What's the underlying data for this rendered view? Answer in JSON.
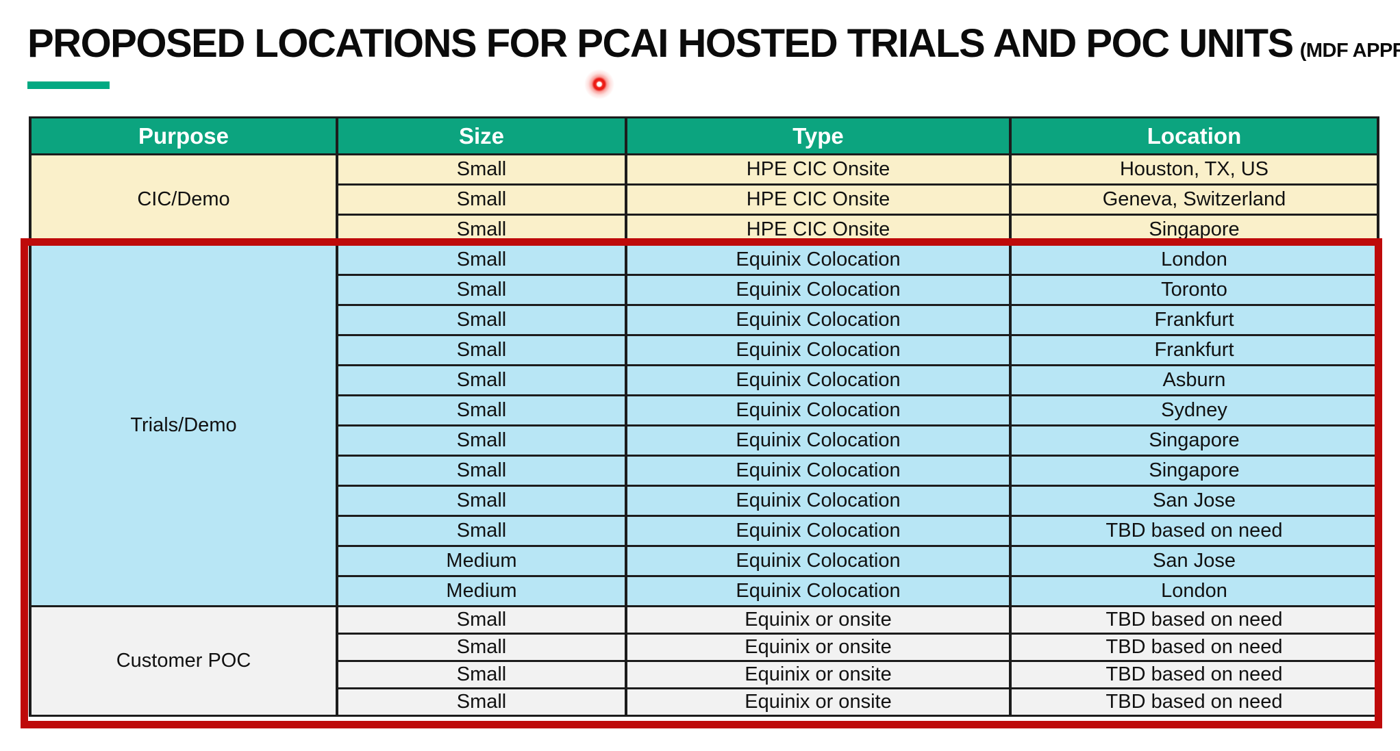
{
  "title": {
    "main": "PROPOSED LOCATIONS FOR PCAI HOSTED TRIALS AND POC UNITS",
    "suffix": "(MDF APPROVED)"
  },
  "colors": {
    "header_green": "#0ca47f",
    "accent_green": "#01a982",
    "cream": "#faf0ca",
    "light_blue": "#b8e6f5",
    "light_gray": "#f2f2f2",
    "highlight_red": "#be0a0a",
    "laser_red": "#e81712"
  },
  "table": {
    "columns": [
      "Purpose",
      "Size",
      "Type",
      "Location"
    ],
    "sections": [
      {
        "purpose": "CIC/Demo",
        "bg": "cream",
        "highlighted": false,
        "rows": [
          {
            "size": "Small",
            "type": "HPE CIC Onsite",
            "location": "Houston, TX, US"
          },
          {
            "size": "Small",
            "type": "HPE CIC Onsite",
            "location": "Geneva, Switzerland"
          },
          {
            "size": "Small",
            "type": "HPE CIC Onsite",
            "location": "Singapore"
          }
        ]
      },
      {
        "purpose": "Trials/Demo",
        "bg": "light_blue",
        "highlighted": true,
        "rows": [
          {
            "size": "Small",
            "type": "Equinix Colocation",
            "location": "London"
          },
          {
            "size": "Small",
            "type": "Equinix Colocation",
            "location": "Toronto"
          },
          {
            "size": "Small",
            "type": "Equinix Colocation",
            "location": "Frankfurt"
          },
          {
            "size": "Small",
            "type": "Equinix Colocation",
            "location": "Frankfurt"
          },
          {
            "size": "Small",
            "type": "Equinix Colocation",
            "location": "Asburn"
          },
          {
            "size": "Small",
            "type": "Equinix Colocation",
            "location": "Sydney"
          },
          {
            "size": "Small",
            "type": "Equinix Colocation",
            "location": "Singapore"
          },
          {
            "size": "Small",
            "type": "Equinix Colocation",
            "location": "Singapore"
          },
          {
            "size": "Small",
            "type": "Equinix Colocation",
            "location": "San Jose"
          },
          {
            "size": "Small",
            "type": "Equinix Colocation",
            "location": "TBD based on need"
          },
          {
            "size": "Medium",
            "type": "Equinix Colocation",
            "location": "San Jose"
          },
          {
            "size": "Medium",
            "type": "Equinix Colocation",
            "location": "London"
          }
        ]
      },
      {
        "purpose": "Customer POC",
        "bg": "light_gray",
        "highlighted": true,
        "rows": [
          {
            "size": "Small",
            "type": "Equinix or onsite",
            "location": "TBD based on need"
          },
          {
            "size": "Small",
            "type": "Equinix or onsite",
            "location": "TBD based on need"
          },
          {
            "size": "Small",
            "type": "Equinix or onsite",
            "location": "TBD based on need"
          },
          {
            "size": "Small",
            "type": "Equinix or onsite",
            "location": "TBD based on need"
          }
        ]
      }
    ]
  }
}
